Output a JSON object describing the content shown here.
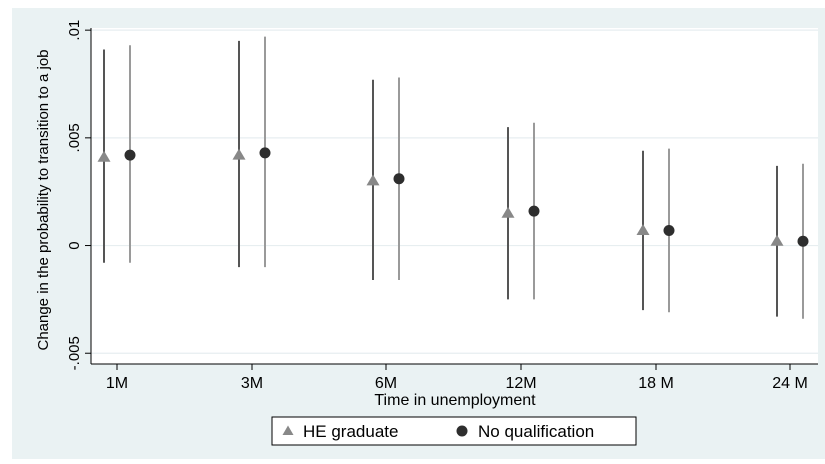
{
  "chart_data": {
    "type": "scatter",
    "subtype": "point-estimates-with-confidence-intervals",
    "xlabel": "Time in unemployment",
    "ylabel": "Change in the probability to transition to a job",
    "categories": [
      "1M",
      "3M",
      "6M",
      "12M",
      "18 M",
      "24 M"
    ],
    "ylim": [
      -0.0055,
      0.0101
    ],
    "yticks": [
      {
        "value": -0.005,
        "label": "-.005"
      },
      {
        "value": 0,
        "label": "0"
      },
      {
        "value": 0.005,
        "label": ".005"
      },
      {
        "value": 0.01,
        "label": ".01"
      }
    ],
    "grid": "horizontal",
    "legend_position": "bottom",
    "series": [
      {
        "name": "HE graduate",
        "marker": "triangle",
        "marker_color": "#888888",
        "ci_color": "#555555",
        "values": [
          0.0041,
          0.0042,
          0.003,
          0.0015,
          0.0007,
          0.0002
        ],
        "ci_low": [
          -0.0008,
          -0.001,
          -0.0016,
          -0.0025,
          -0.003,
          -0.0033
        ],
        "ci_high": [
          0.0091,
          0.0095,
          0.0077,
          0.0055,
          0.0044,
          0.0037
        ]
      },
      {
        "name": "No qualification",
        "marker": "circle",
        "marker_color": "#2e2e2e",
        "ci_color": "#9a9a9a",
        "values": [
          0.0042,
          0.0043,
          0.0031,
          0.0016,
          0.0007,
          0.0002
        ],
        "ci_low": [
          -0.0008,
          -0.001,
          -0.0016,
          -0.0025,
          -0.0031,
          -0.0034
        ],
        "ci_high": [
          0.0093,
          0.0097,
          0.0078,
          0.0057,
          0.0045,
          0.0038
        ]
      }
    ]
  }
}
